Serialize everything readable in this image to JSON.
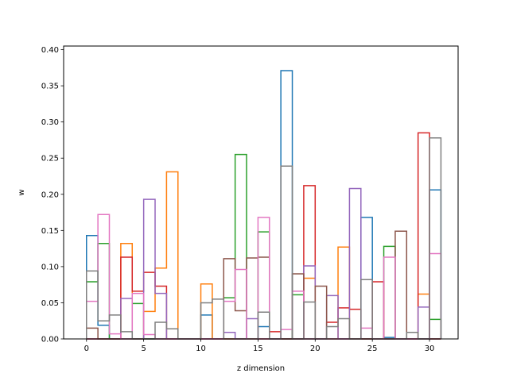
{
  "chart_data": {
    "type": "bar",
    "style": "step-histogram",
    "xlabel": "z dimension",
    "ylabel": "w",
    "xlim": [
      -2.0,
      32.5
    ],
    "ylim": [
      0,
      0.405
    ],
    "xticks": [
      0,
      5,
      10,
      15,
      20,
      25,
      30
    ],
    "yticks": [
      0.0,
      0.05,
      0.1,
      0.15,
      0.2,
      0.25,
      0.3,
      0.35,
      0.4
    ],
    "ytick_labels": [
      "0.00",
      "0.05",
      "0.10",
      "0.15",
      "0.20",
      "0.25",
      "0.30",
      "0.35",
      "0.40"
    ],
    "bin_edges": [
      0,
      1,
      2,
      3,
      4,
      5,
      6,
      7,
      8,
      9,
      10,
      11,
      12,
      13,
      14,
      15,
      16,
      17,
      18,
      19,
      20,
      21,
      22,
      23,
      24,
      25,
      26,
      27,
      28,
      29,
      30,
      31
    ],
    "grid": false,
    "legend": "none",
    "series": [
      {
        "color": "#1f77b4",
        "values": [
          0.143,
          0.019,
          0.0,
          0.0,
          0.0,
          0.0,
          0.0,
          0.0,
          0.0,
          0.0,
          0.033,
          0.0,
          0.0,
          0.0,
          0.0,
          0.017,
          0.0,
          0.371,
          0.0,
          0.0,
          0.0,
          0.0,
          0.0,
          0.0,
          0.168,
          0.0,
          0.002,
          0.0,
          0.0,
          0.0,
          0.206
        ]
      },
      {
        "color": "#ff7f0e",
        "values": [
          0.0,
          0.0,
          0.0,
          0.132,
          0.0,
          0.038,
          0.098,
          0.231,
          0.0,
          0.0,
          0.076,
          0.0,
          0.0,
          0.0,
          0.0,
          0.0,
          0.0,
          0.0,
          0.0,
          0.084,
          0.0,
          0.0,
          0.127,
          0.0,
          0.0,
          0.0,
          0.0,
          0.0,
          0.0,
          0.062,
          0.0
        ]
      },
      {
        "color": "#2ca02c",
        "values": [
          0.079,
          0.132,
          0.0,
          0.0,
          0.049,
          0.0,
          0.0,
          0.0,
          0.0,
          0.0,
          0.0,
          0.0,
          0.057,
          0.255,
          0.0,
          0.148,
          0.0,
          0.0,
          0.061,
          0.0,
          0.0,
          0.0,
          0.0,
          0.0,
          0.0,
          0.0,
          0.128,
          0.0,
          0.0,
          0.0,
          0.027
        ]
      },
      {
        "color": "#d62728",
        "values": [
          0.0,
          0.0,
          0.0,
          0.113,
          0.066,
          0.092,
          0.073,
          0.0,
          0.0,
          0.0,
          0.0,
          0.0,
          0.0,
          0.0,
          0.0,
          0.0,
          0.01,
          0.0,
          0.0,
          0.212,
          0.0,
          0.023,
          0.043,
          0.041,
          0.0,
          0.079,
          0.0,
          0.0,
          0.0,
          0.285,
          0.0
        ]
      },
      {
        "color": "#9467bd",
        "values": [
          0.0,
          0.0,
          0.0,
          0.056,
          0.0,
          0.193,
          0.063,
          0.0,
          0.0,
          0.0,
          0.0,
          0.0,
          0.009,
          0.0,
          0.028,
          0.0,
          0.0,
          0.0,
          0.0,
          0.101,
          0.0,
          0.06,
          0.0,
          0.208,
          0.0,
          0.0,
          0.0,
          0.0,
          0.0,
          0.044,
          0.0
        ]
      },
      {
        "color": "#8c564b",
        "values": [
          0.015,
          0.0,
          0.0,
          0.0,
          0.0,
          0.0,
          0.0,
          0.0,
          0.0,
          0.0,
          0.0,
          0.0,
          0.111,
          0.039,
          0.112,
          0.113,
          0.0,
          0.0,
          0.09,
          0.0,
          0.073,
          0.0,
          0.0,
          0.0,
          0.0,
          0.0,
          0.0,
          0.149,
          0.0,
          0.0,
          0.0
        ]
      },
      {
        "color": "#e377c2",
        "values": [
          0.052,
          0.172,
          0.007,
          0.0,
          0.063,
          0.006,
          0.0,
          0.0,
          0.0,
          0.0,
          0.0,
          0.0,
          0.052,
          0.096,
          0.0,
          0.168,
          0.0,
          0.013,
          0.066,
          0.0,
          0.0,
          0.0,
          0.0,
          0.0,
          0.015,
          0.0,
          0.113,
          0.0,
          0.0,
          0.0,
          0.118
        ]
      },
      {
        "color": "#7f7f7f",
        "values": [
          0.094,
          0.025,
          0.033,
          0.01,
          0.0,
          0.0,
          0.023,
          0.014,
          0.0,
          0.0,
          0.05,
          0.055,
          0.0,
          0.0,
          0.0,
          0.037,
          0.0,
          0.239,
          0.0,
          0.051,
          0.0,
          0.017,
          0.028,
          0.0,
          0.082,
          0.0,
          0.0,
          0.0,
          0.009,
          0.0,
          0.278
        ]
      }
    ]
  }
}
